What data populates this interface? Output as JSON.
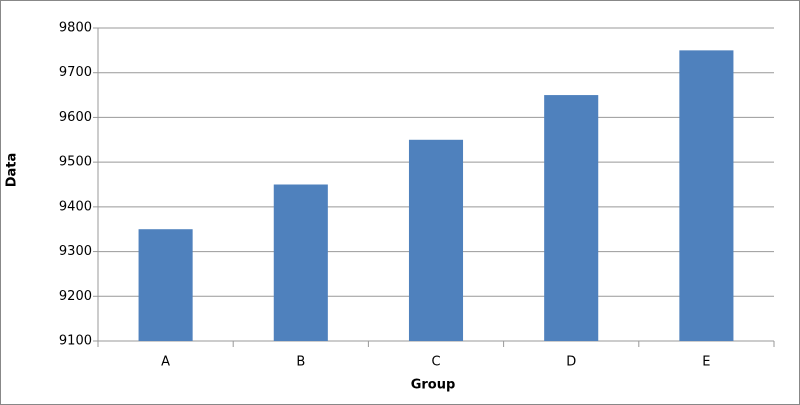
{
  "chart_data": {
    "type": "bar",
    "categories": [
      "A",
      "B",
      "C",
      "D",
      "E"
    ],
    "values": [
      9350,
      9450,
      9550,
      9650,
      9750
    ],
    "color": "#4f81bd",
    "x_label": "Group",
    "y_label": "Data",
    "ylim": [
      9100,
      9800
    ],
    "yticks": [
      9100,
      9200,
      9300,
      9400,
      9500,
      9600,
      9700,
      9800
    ],
    "grid": true
  }
}
